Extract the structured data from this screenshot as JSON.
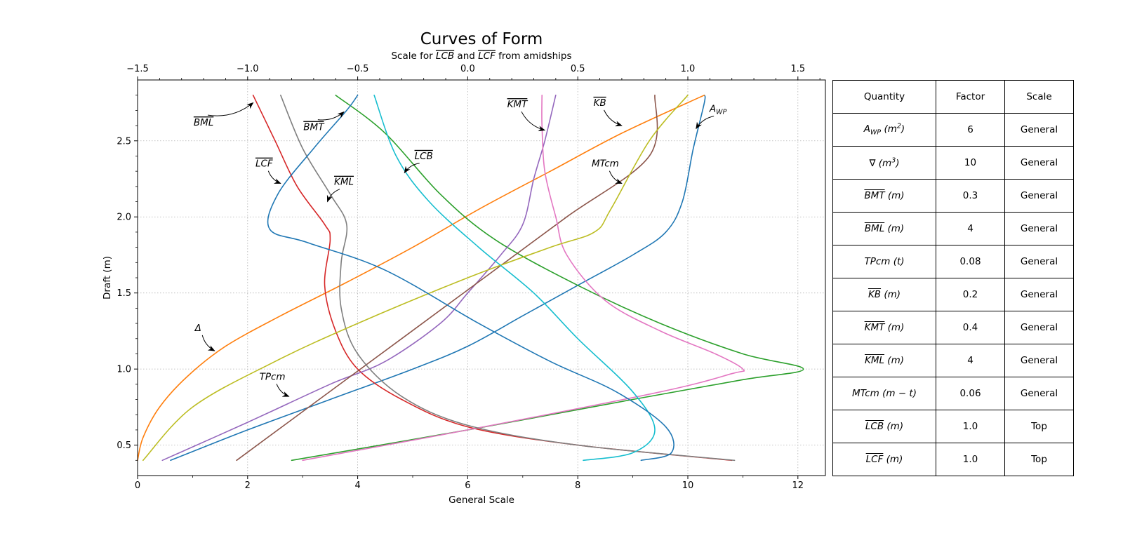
{
  "chart_data": {
    "type": "line",
    "title": "Curves of Form",
    "top_axis_label_parts": [
      "Scale for ",
      "LCB",
      " and ",
      "LCF",
      " from amidships"
    ],
    "xlabel": "General Scale",
    "ylabel": "Draft (m)",
    "xlim": [
      0,
      12.5
    ],
    "ylim": [
      0.3,
      2.9
    ],
    "top_xlim": [
      -1.5,
      1.625
    ],
    "xticks": [
      0,
      2,
      4,
      6,
      8,
      10,
      12
    ],
    "yticks": [
      0.5,
      1.0,
      1.5,
      2.0,
      2.5
    ],
    "top_xticks": [
      -1.5,
      -1.0,
      -0.5,
      0.0,
      0.5,
      1.0,
      1.5
    ],
    "xtick_labels": [
      "0",
      "2",
      "4",
      "6",
      "8",
      "10",
      "12"
    ],
    "ytick_labels": [
      "0.5",
      "1.0",
      "1.5",
      "2.0",
      "2.5"
    ],
    "top_xtick_labels": [
      "−1.5",
      "−1.0",
      "−0.5",
      "0.0",
      "0.5",
      "1.0",
      "1.5"
    ],
    "grid": true,
    "series": [
      {
        "id": "awp",
        "color": "#1f77b4",
        "points": [
          [
            0.6,
            0.4
          ],
          [
            2.0,
            0.6
          ],
          [
            3.5,
            0.8
          ],
          [
            5.0,
            1.0
          ],
          [
            6.0,
            1.15
          ],
          [
            7.0,
            1.35
          ],
          [
            8.0,
            1.55
          ],
          [
            9.0,
            1.75
          ],
          [
            9.6,
            1.9
          ],
          [
            9.9,
            2.1
          ],
          [
            10.1,
            2.45
          ],
          [
            10.3,
            2.75
          ],
          [
            10.3,
            2.8
          ]
        ]
      },
      {
        "id": "delta",
        "color": "#ff7f0e",
        "points": [
          [
            0.0,
            0.4
          ],
          [
            0.1,
            0.55
          ],
          [
            0.4,
            0.75
          ],
          [
            0.9,
            0.95
          ],
          [
            1.6,
            1.15
          ],
          [
            2.6,
            1.35
          ],
          [
            3.8,
            1.57
          ],
          [
            5.0,
            1.8
          ],
          [
            6.2,
            2.05
          ],
          [
            7.5,
            2.3
          ],
          [
            8.8,
            2.55
          ],
          [
            10.3,
            2.8
          ]
        ]
      },
      {
        "id": "bmt",
        "color": "#2ca02c",
        "points": [
          [
            2.8,
            0.4
          ],
          [
            6.0,
            0.6
          ],
          [
            9.0,
            0.8
          ],
          [
            11.0,
            0.93
          ],
          [
            12.1,
            1.0
          ],
          [
            11.0,
            1.1
          ],
          [
            9.5,
            1.3
          ],
          [
            8.0,
            1.55
          ],
          [
            6.5,
            1.85
          ],
          [
            5.5,
            2.15
          ],
          [
            4.5,
            2.55
          ],
          [
            3.6,
            2.8
          ]
        ]
      },
      {
        "id": "bml",
        "color": "#d62728",
        "points": [
          [
            10.8,
            0.4
          ],
          [
            8.0,
            0.5
          ],
          [
            6.0,
            0.62
          ],
          [
            4.8,
            0.8
          ],
          [
            4.0,
            1.0
          ],
          [
            3.6,
            1.25
          ],
          [
            3.4,
            1.55
          ],
          [
            3.5,
            1.85
          ],
          [
            3.4,
            1.95
          ],
          [
            2.9,
            2.2
          ],
          [
            2.5,
            2.5
          ],
          [
            2.1,
            2.8
          ]
        ]
      },
      {
        "id": "tpcm",
        "color": "#9467bd",
        "points": [
          [
            0.45,
            0.4
          ],
          [
            2.0,
            0.65
          ],
          [
            3.5,
            0.9
          ],
          [
            4.5,
            1.05
          ],
          [
            5.5,
            1.3
          ],
          [
            6.0,
            1.5
          ],
          [
            6.6,
            1.75
          ],
          [
            7.0,
            1.95
          ],
          [
            7.2,
            2.25
          ],
          [
            7.4,
            2.5
          ],
          [
            7.6,
            2.8
          ]
        ]
      },
      {
        "id": "kb",
        "color": "#8c564b",
        "points": [
          [
            1.8,
            0.4
          ],
          [
            3.3,
            0.8
          ],
          [
            4.8,
            1.2
          ],
          [
            6.3,
            1.6
          ],
          [
            7.8,
            2.0
          ],
          [
            9.3,
            2.4
          ],
          [
            9.4,
            2.8
          ]
        ]
      },
      {
        "id": "kmt",
        "color": "#e377c2",
        "points": [
          [
            3.0,
            0.4
          ],
          [
            6.0,
            0.6
          ],
          [
            9.5,
            0.85
          ],
          [
            10.8,
            0.97
          ],
          [
            11.0,
            1.0
          ],
          [
            10.5,
            1.1
          ],
          [
            9.5,
            1.25
          ],
          [
            8.5,
            1.45
          ],
          [
            7.8,
            1.75
          ],
          [
            7.6,
            2.0
          ],
          [
            7.4,
            2.3
          ],
          [
            7.35,
            2.6
          ],
          [
            7.35,
            2.8
          ]
        ]
      },
      {
        "id": "kml",
        "color": "#7f7f7f",
        "points": [
          [
            10.85,
            0.4
          ],
          [
            8.0,
            0.5
          ],
          [
            6.0,
            0.63
          ],
          [
            4.8,
            0.82
          ],
          [
            4.0,
            1.1
          ],
          [
            3.7,
            1.4
          ],
          [
            3.7,
            1.7
          ],
          [
            3.8,
            1.95
          ],
          [
            3.5,
            2.15
          ],
          [
            3.0,
            2.45
          ],
          [
            2.6,
            2.8
          ]
        ]
      },
      {
        "id": "mtcm",
        "color": "#bcbd22",
        "points": [
          [
            0.1,
            0.4
          ],
          [
            1.0,
            0.75
          ],
          [
            2.5,
            1.05
          ],
          [
            4.0,
            1.3
          ],
          [
            6.0,
            1.6
          ],
          [
            7.5,
            1.8
          ],
          [
            8.3,
            1.9
          ],
          [
            8.6,
            2.05
          ],
          [
            9.3,
            2.5
          ],
          [
            10.0,
            2.8
          ]
        ]
      },
      {
        "id": "lcb",
        "color": "#17becf",
        "points": [
          [
            8.1,
            0.4
          ],
          [
            9.0,
            0.45
          ],
          [
            9.4,
            0.6
          ],
          [
            9.0,
            0.85
          ],
          [
            8.0,
            1.2
          ],
          [
            7.2,
            1.5
          ],
          [
            6.2,
            1.8
          ],
          [
            5.3,
            2.1
          ],
          [
            4.7,
            2.4
          ],
          [
            4.3,
            2.8
          ]
        ]
      },
      {
        "id": "lcf",
        "color": "#1f77b4",
        "points": [
          [
            9.15,
            0.4
          ],
          [
            9.7,
            0.45
          ],
          [
            9.6,
            0.62
          ],
          [
            8.7,
            0.85
          ],
          [
            7.5,
            1.05
          ],
          [
            6.2,
            1.3
          ],
          [
            4.5,
            1.65
          ],
          [
            3.1,
            1.83
          ],
          [
            2.4,
            1.92
          ],
          [
            2.55,
            2.15
          ],
          [
            3.2,
            2.45
          ],
          [
            3.8,
            2.7
          ],
          [
            4.0,
            2.8
          ]
        ]
      }
    ],
    "annotations": [
      {
        "parts": [
          "",
          "BML",
          ""
        ],
        "tx": 1.2,
        "ty": 2.6,
        "ax": 2.1,
        "ay": 2.75
      },
      {
        "parts": [
          "",
          "BMT",
          ""
        ],
        "tx": 3.2,
        "ty": 2.57,
        "ax": 3.75,
        "ay": 2.69
      },
      {
        "parts": [
          "",
          "KMT",
          ""
        ],
        "tx": 6.9,
        "ty": 2.72,
        "ax": 7.4,
        "ay": 2.57
      },
      {
        "parts": [
          "",
          "KB",
          ""
        ],
        "tx": 8.4,
        "ty": 2.73,
        "ax": 8.8,
        "ay": 2.6
      },
      {
        "parts": [
          "A",
          "",
          "WP"
        ],
        "tx": 10.55,
        "ty": 2.69,
        "ax": 10.15,
        "ay": 2.58
      },
      {
        "parts": [
          "",
          "LCB",
          ""
        ],
        "tx": 5.2,
        "ty": 2.38,
        "ax": 4.85,
        "ay": 2.29
      },
      {
        "parts": [
          "",
          "LCF",
          ""
        ],
        "tx": 2.3,
        "ty": 2.33,
        "ax": 2.6,
        "ay": 2.22
      },
      {
        "parts": [
          "",
          "KML",
          ""
        ],
        "tx": 3.75,
        "ty": 2.21,
        "ax": 3.45,
        "ay": 2.1
      },
      {
        "parts": [
          "MTcm",
          "",
          ""
        ],
        "tx": 8.5,
        "ty": 2.33,
        "ax": 8.8,
        "ay": 2.22
      },
      {
        "parts": [
          "Δ",
          "",
          ""
        ],
        "tx": 1.1,
        "ty": 1.25,
        "ax": 1.4,
        "ay": 1.12
      },
      {
        "parts": [
          "TPcm",
          "",
          ""
        ],
        "tx": 2.45,
        "ty": 0.93,
        "ax": 2.75,
        "ay": 0.82
      }
    ]
  },
  "table": {
    "headers": [
      "Quantity",
      "Factor",
      "Scale"
    ],
    "rows": [
      {
        "q_pre": "A",
        "q_ov": "",
        "q_sub": "WP",
        "q_unit": " (m",
        "q_sup": "2",
        "q_close": ")",
        "factor": "6",
        "scale": "General"
      },
      {
        "q_pre": "∇",
        "q_ov": "",
        "q_sub": "",
        "q_unit": " (m",
        "q_sup": "3",
        "q_close": ")",
        "factor": "10",
        "scale": "General"
      },
      {
        "q_pre": "",
        "q_ov": "BMT",
        "q_sub": "",
        "q_unit": " (m)",
        "q_sup": "",
        "q_close": "",
        "factor": "0.3",
        "scale": "General"
      },
      {
        "q_pre": "",
        "q_ov": "BML",
        "q_sub": "",
        "q_unit": " (m)",
        "q_sup": "",
        "q_close": "",
        "factor": "4",
        "scale": "General"
      },
      {
        "q_pre": "TPcm",
        "q_ov": "",
        "q_sub": "",
        "q_unit": " (t)",
        "q_sup": "",
        "q_close": "",
        "factor": "0.08",
        "scale": "General"
      },
      {
        "q_pre": "",
        "q_ov": "KB",
        "q_sub": "",
        "q_unit": " (m)",
        "q_sup": "",
        "q_close": "",
        "factor": "0.2",
        "scale": "General"
      },
      {
        "q_pre": "",
        "q_ov": "KMT",
        "q_sub": "",
        "q_unit": " (m)",
        "q_sup": "",
        "q_close": "",
        "factor": "0.4",
        "scale": "General"
      },
      {
        "q_pre": "",
        "q_ov": "KML",
        "q_sub": "",
        "q_unit": " (m)",
        "q_sup": "",
        "q_close": "",
        "factor": "4",
        "scale": "General"
      },
      {
        "q_pre": "MTcm",
        "q_ov": "",
        "q_sub": "",
        "q_unit": " (m − t)",
        "q_sup": "",
        "q_close": "",
        "factor": "0.06",
        "scale": "General"
      },
      {
        "q_pre": "",
        "q_ov": "LCB",
        "q_sub": "",
        "q_unit": " (m)",
        "q_sup": "",
        "q_close": "",
        "factor": "1.0",
        "scale": "Top"
      },
      {
        "q_pre": "",
        "q_ov": "LCF",
        "q_sub": "",
        "q_unit": " (m)",
        "q_sup": "",
        "q_close": "",
        "factor": "1.0",
        "scale": "Top"
      }
    ]
  }
}
